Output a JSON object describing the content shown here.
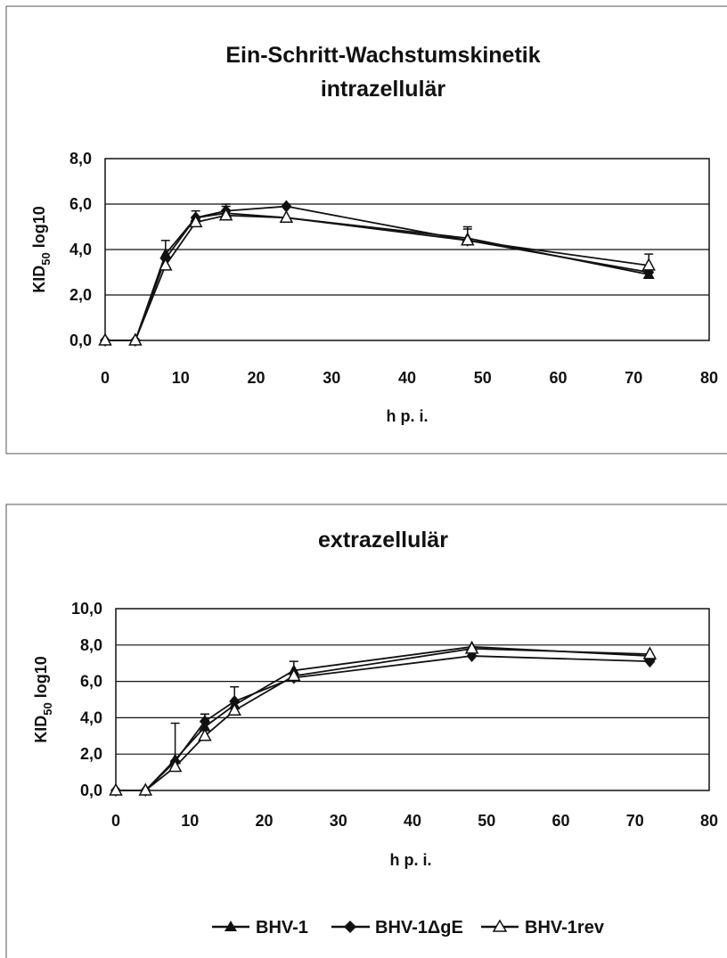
{
  "legend": [
    {
      "name": "BHV-1",
      "marker": "triangle-filled"
    },
    {
      "name": "BHV-1ΔgE",
      "marker": "diamond-filled"
    },
    {
      "name": "BHV-1rev",
      "marker": "triangle-open"
    }
  ],
  "chart_data": [
    {
      "type": "line",
      "title": "Ein-Schritt-Wachstumskinetik",
      "subtitle": "intrazellulär",
      "xlabel": "h p. i.",
      "ylabel": "KID50 log10",
      "ylabel_main": "KID",
      "ylabel_sub": "50",
      "ylabel_rest": " log10",
      "xlim": [
        0,
        80
      ],
      "ylim": [
        0,
        8
      ],
      "xticks": [
        "0",
        "10",
        "20",
        "30",
        "40",
        "50",
        "60",
        "70",
        "80"
      ],
      "yticks": [
        "0,0",
        "2,0",
        "4,0",
        "6,0",
        "8,0"
      ],
      "grid": "horizontal",
      "series": [
        {
          "name": "BHV-1",
          "marker": "triangle-filled",
          "x": [
            0,
            4,
            8,
            12,
            16,
            24,
            48,
            72
          ],
          "y": [
            0.0,
            0.0,
            3.8,
            5.4,
            5.6,
            5.4,
            4.5,
            2.9
          ],
          "err": [
            0,
            0,
            0.6,
            0.3,
            0.3,
            0,
            0.5,
            0
          ]
        },
        {
          "name": "BHV-1ΔgE",
          "marker": "diamond-filled",
          "x": [
            0,
            4,
            8,
            12,
            16,
            24,
            48,
            72
          ],
          "y": [
            0.0,
            0.0,
            3.6,
            5.4,
            5.7,
            5.9,
            4.4,
            3.0
          ],
          "err": [
            0,
            0,
            0,
            0,
            0.3,
            0,
            0,
            0
          ]
        },
        {
          "name": "BHV-1rev",
          "marker": "triangle-open",
          "x": [
            0,
            4,
            8,
            12,
            16,
            24,
            48,
            72
          ],
          "y": [
            0.0,
            0.0,
            3.3,
            5.2,
            5.5,
            5.4,
            4.4,
            3.3
          ],
          "err": [
            0,
            0,
            0,
            0,
            0,
            0,
            0.5,
            0.5
          ]
        }
      ]
    },
    {
      "type": "line",
      "title": "extrazellulär",
      "xlabel": "h p. i.",
      "ylabel": "KID50 log10",
      "ylabel_main": "KID",
      "ylabel_sub": "50",
      "ylabel_rest": " log10",
      "xlim": [
        0,
        80
      ],
      "ylim": [
        0,
        10
      ],
      "xticks": [
        "0",
        "10",
        "20",
        "30",
        "40",
        "50",
        "60",
        "70",
        "80"
      ],
      "yticks": [
        "0,0",
        "2,0",
        "4,0",
        "6,0",
        "8,0",
        "10,0"
      ],
      "grid": "horizontal",
      "series": [
        {
          "name": "BHV-1",
          "marker": "triangle-filled",
          "x": [
            0,
            4,
            8,
            12,
            16,
            24,
            48,
            72
          ],
          "y": [
            0.0,
            0.0,
            1.7,
            3.5,
            4.7,
            6.6,
            7.9,
            7.4
          ],
          "err": [
            0,
            0,
            2.0,
            0.7,
            0,
            0.5,
            0,
            0
          ]
        },
        {
          "name": "BHV-1ΔgE",
          "marker": "diamond-filled",
          "x": [
            0,
            4,
            8,
            12,
            16,
            24,
            48,
            72
          ],
          "y": [
            0.0,
            0.0,
            1.6,
            3.8,
            4.9,
            6.2,
            7.4,
            7.1
          ],
          "err": [
            0,
            0,
            0,
            0.4,
            0.8,
            0,
            0,
            0
          ]
        },
        {
          "name": "BHV-1rev",
          "marker": "triangle-open",
          "x": [
            0,
            4,
            8,
            12,
            16,
            24,
            48,
            72
          ],
          "y": [
            0.0,
            0.0,
            1.3,
            3.0,
            4.4,
            6.3,
            7.8,
            7.5
          ],
          "err": [
            0,
            0,
            0,
            0,
            0,
            0,
            0,
            0
          ]
        }
      ]
    }
  ]
}
